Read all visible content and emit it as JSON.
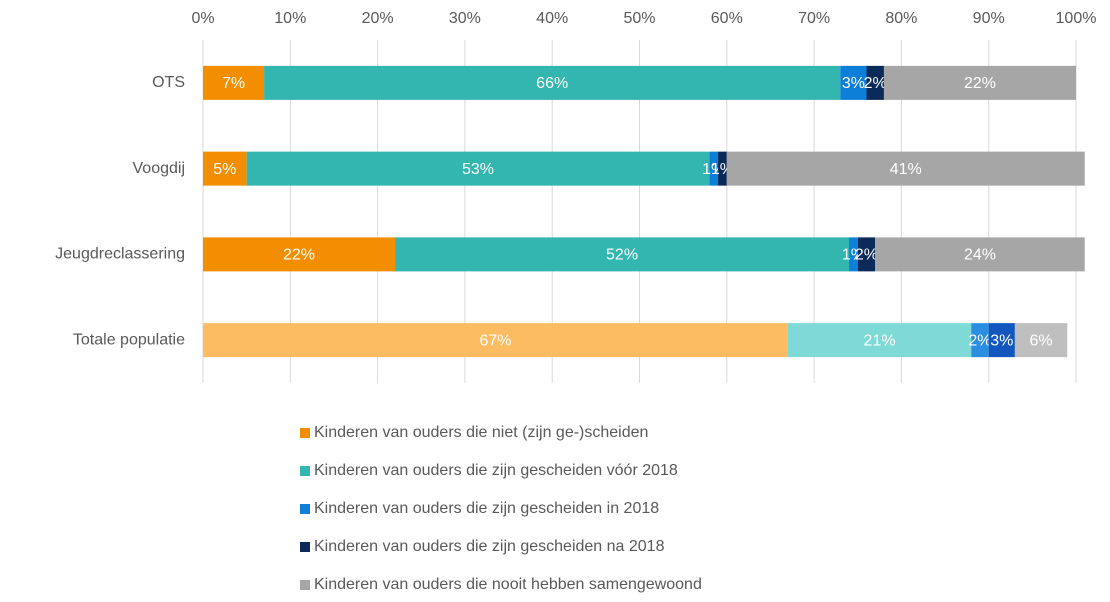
{
  "chart_data": {
    "type": "stacked-bar-horizontal",
    "categories": [
      "OTS",
      "Voogdij",
      "Jeugdreclassering",
      "Totale populatie"
    ],
    "series": [
      {
        "name": "Kinderen van ouders die niet (zijn ge-)scheiden",
        "color": "#f28e00",
        "colors": [
          "#f28e00",
          "#f28e00",
          "#f28e00",
          "#fcbc62"
        ],
        "values": [
          7,
          5,
          22,
          67
        ],
        "value_labels": [
          "7%",
          "5%",
          "22%",
          "67%"
        ]
      },
      {
        "name": "Kinderen van ouders die zijn gescheiden vóór 2018",
        "color": "#33b5b0",
        "colors": [
          "#33b5b0",
          "#33b5b0",
          "#33b5b0",
          "#7fd9d6"
        ],
        "values": [
          66,
          53,
          52,
          21
        ],
        "value_labels": [
          "66%",
          "53%",
          "52%",
          "21%"
        ]
      },
      {
        "name": "Kinderen van ouders die zijn gescheiden in 2018",
        "color": "#0e7fd8",
        "colors": [
          "#0e7fd8",
          "#0e7fd8",
          "#0e7fd8",
          "#2a8fe0"
        ],
        "values": [
          3,
          1,
          1,
          2
        ],
        "value_labels": [
          "3%",
          "1%",
          "1%",
          "2%"
        ]
      },
      {
        "name": "Kinderen van ouders die zijn gescheiden na 2018",
        "color": "#0b2a5a",
        "colors": [
          "#0b2a5a",
          "#0b2a5a",
          "#0b2a5a",
          "#1257bd"
        ],
        "values": [
          2,
          1,
          2,
          3
        ],
        "value_labels": [
          "2%",
          "1%",
          "2%",
          "3%"
        ]
      },
      {
        "name": "Kinderen van ouders die nooit hebben samengewoond",
        "color": "#a6a6a6",
        "colors": [
          "#a6a6a6",
          "#a6a6a6",
          "#a6a6a6",
          "#bfbfbf"
        ],
        "values": [
          22,
          41,
          24,
          6
        ],
        "value_labels": [
          "22%",
          "41%",
          "24%",
          "6%"
        ]
      }
    ],
    "xlim": [
      0,
      100
    ],
    "xticks": [
      {
        "value": 0,
        "label": "0%"
      },
      {
        "value": 10,
        "label": "10%"
      },
      {
        "value": 20,
        "label": "20%"
      },
      {
        "value": 30,
        "label": "30%"
      },
      {
        "value": 40,
        "label": "40%"
      },
      {
        "value": 50,
        "label": "50%"
      },
      {
        "value": 60,
        "label": "60%"
      },
      {
        "value": 70,
        "label": "70%"
      },
      {
        "value": 80,
        "label": "80%"
      },
      {
        "value": 90,
        "label": "90%"
      },
      {
        "value": 100,
        "label": "100%"
      }
    ],
    "grid": true,
    "legend": "bottom"
  }
}
